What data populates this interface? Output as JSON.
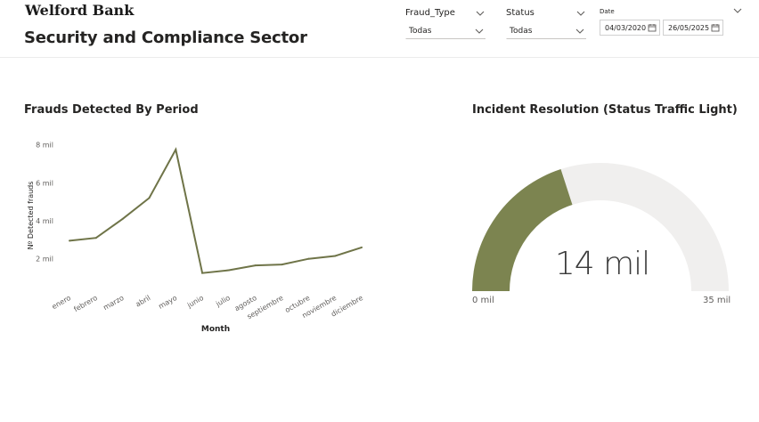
{
  "header": {
    "brand": "Welford Bank",
    "title": "Security and Compliance Sector"
  },
  "filters": {
    "fraud_type": {
      "label": "Fraud_Type",
      "value": "Todas"
    },
    "status": {
      "label": "Status",
      "value": "Todas"
    },
    "date": {
      "label": "Date",
      "start": "04/03/2020",
      "end": "26/05/2025"
    }
  },
  "line_visual": {
    "title": "Frauds Detected By Period"
  },
  "gauge_visual": {
    "title": "Incident Resolution (Status Traffic Light)",
    "value_label": "14 mil",
    "min_label": "0 mil",
    "max_label": "35 mil",
    "value": 14,
    "min": 0,
    "max": 35,
    "fill_color": "#7c8450",
    "track_color": "#f0efee"
  },
  "chart_data": [
    {
      "type": "line",
      "title": "Frauds Detected By Period",
      "xlabel": "Month",
      "ylabel": "Nº Detected frauds",
      "categories": [
        "enero",
        "febrero",
        "marzo",
        "abril",
        "mayo",
        "junio",
        "julio",
        "agosto",
        "septiembre",
        "octubre",
        "noviembre",
        "diciembre"
      ],
      "values": [
        2950,
        3100,
        4100,
        5200,
        7750,
        1250,
        1400,
        1650,
        1700,
        2000,
        2150,
        2600
      ],
      "yticks": [
        2000,
        4000,
        6000,
        8000
      ],
      "ytick_labels": [
        "2 mil",
        "4 mil",
        "6 mil",
        "8 mil"
      ],
      "ylim": [
        1000,
        8500
      ],
      "grid": false,
      "color": "#6f7448"
    },
    {
      "type": "gauge",
      "title": "Incident Resolution (Status Traffic Light)",
      "value": 14,
      "min": 0,
      "max": 35,
      "unit": "mil"
    }
  ]
}
